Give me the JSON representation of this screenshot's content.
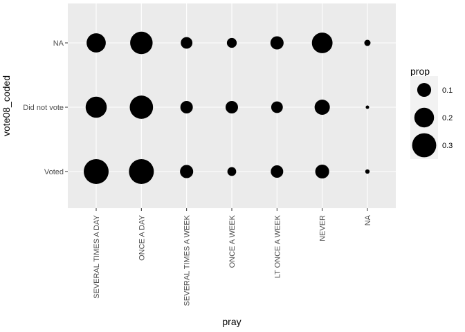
{
  "chart_data": {
    "type": "scatter",
    "xlabel": "pray",
    "ylabel": "vote08_coded",
    "x_categories": [
      "SEVERAL TIMES A DAY",
      "ONCE A DAY",
      "SEVERAL TIMES A WEEK",
      "ONCE A WEEK",
      "LT ONCE A WEEK",
      "NEVER",
      "NA"
    ],
    "y_categories": [
      "Voted",
      "Did not vote",
      "NA"
    ],
    "size_variable": "prop",
    "points": [
      {
        "x": "SEVERAL TIMES A DAY",
        "y": "NA",
        "prop": 0.19
      },
      {
        "x": "ONCE A DAY",
        "y": "NA",
        "prop": 0.26
      },
      {
        "x": "SEVERAL TIMES A WEEK",
        "y": "NA",
        "prop": 0.07
      },
      {
        "x": "ONCE A WEEK",
        "y": "NA",
        "prop": 0.05
      },
      {
        "x": "LT ONCE A WEEK",
        "y": "NA",
        "prop": 0.09
      },
      {
        "x": "NEVER",
        "y": "NA",
        "prop": 0.22
      },
      {
        "x": "NA",
        "y": "NA",
        "prop": 0.02
      },
      {
        "x": "SEVERAL TIMES A DAY",
        "y": "Did not vote",
        "prop": 0.23
      },
      {
        "x": "ONCE A DAY",
        "y": "Did not vote",
        "prop": 0.28
      },
      {
        "x": "SEVERAL TIMES A WEEK",
        "y": "Did not vote",
        "prop": 0.08
      },
      {
        "x": "ONCE A WEEK",
        "y": "Did not vote",
        "prop": 0.08
      },
      {
        "x": "LT ONCE A WEEK",
        "y": "Did not vote",
        "prop": 0.07
      },
      {
        "x": "NEVER",
        "y": "Did not vote",
        "prop": 0.12
      },
      {
        "x": "NA",
        "y": "Did not vote",
        "prop": 0.005
      },
      {
        "x": "SEVERAL TIMES A DAY",
        "y": "Voted",
        "prop": 0.32
      },
      {
        "x": "ONCE A DAY",
        "y": "Voted",
        "prop": 0.32
      },
      {
        "x": "SEVERAL TIMES A WEEK",
        "y": "Voted",
        "prop": 0.09
      },
      {
        "x": "ONCE A WEEK",
        "y": "Voted",
        "prop": 0.04
      },
      {
        "x": "LT ONCE A WEEK",
        "y": "Voted",
        "prop": 0.08
      },
      {
        "x": "NEVER",
        "y": "Voted",
        "prop": 0.1
      },
      {
        "x": "NA",
        "y": "Voted",
        "prop": 0.01
      }
    ],
    "legend": {
      "title": "prop",
      "breaks": [
        0.1,
        0.2,
        0.3
      ],
      "labels": [
        "0.1",
        "0.2",
        "0.3"
      ]
    },
    "grid": true,
    "legend_position": "right",
    "colors": {
      "panel": "#ebebeb",
      "grid_major": "#ffffff",
      "point": "#000000",
      "tick_text": "#4d4d4d",
      "axis_tick": "#333333"
    }
  }
}
